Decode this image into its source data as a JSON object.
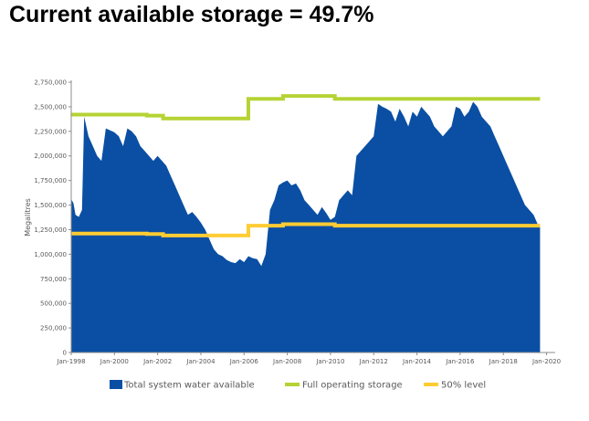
{
  "headline": "Current available storage = 49.7%",
  "chart_data": {
    "type": "area",
    "title": "",
    "xlabel": "",
    "ylabel": "Megalitres",
    "xlim": [
      1998.0,
      2020.4
    ],
    "ylim": [
      0,
      2750000
    ],
    "y_ticks": [
      0,
      250000,
      500000,
      750000,
      1000000,
      1250000,
      1500000,
      1750000,
      2000000,
      2250000,
      2500000,
      2750000
    ],
    "y_tick_labels": [
      "0",
      "250,000",
      "500,000",
      "750,000",
      "1,000,000",
      "1,250,000",
      "1,500,000",
      "1,750,000",
      "2,000,000",
      "2,250,000",
      "2,500,000",
      "2,750,000"
    ],
    "x_ticks": [
      1998,
      2000,
      2002,
      2004,
      2006,
      2008,
      2010,
      2012,
      2014,
      2016,
      2018,
      2020
    ],
    "x_tick_labels": [
      "Jan-1998",
      "Jan-2000",
      "Jan-2002",
      "Jan-2004",
      "Jan-2006",
      "Jan-2008",
      "Jan-2010",
      "Jan-2012",
      "Jan-2014",
      "Jan-2016",
      "Jan-2018",
      "Jan-2020"
    ],
    "grid": false,
    "legend_position": "bottom",
    "series": [
      {
        "name": "Total system water available",
        "kind": "area",
        "color": "#0a4fa3",
        "x": [
          1998.0,
          1998.1,
          1998.2,
          1998.35,
          1998.5,
          1998.6,
          1998.8,
          1999.0,
          1999.2,
          1999.4,
          1999.6,
          1999.8,
          2000.0,
          2000.2,
          2000.4,
          2000.6,
          2000.8,
          2001.0,
          2001.2,
          2001.4,
          2001.6,
          2001.8,
          2002.0,
          2002.2,
          2002.4,
          2002.6,
          2002.8,
          2003.0,
          2003.2,
          2003.4,
          2003.6,
          2003.8,
          2004.0,
          2004.2,
          2004.4,
          2004.6,
          2004.8,
          2005.0,
          2005.2,
          2005.4,
          2005.6,
          2005.8,
          2006.0,
          2006.2,
          2006.4,
          2006.6,
          2006.8,
          2007.0,
          2007.2,
          2007.4,
          2007.6,
          2007.8,
          2008.0,
          2008.2,
          2008.4,
          2008.6,
          2008.8,
          2009.0,
          2009.2,
          2009.4,
          2009.6,
          2009.8,
          2010.0,
          2010.2,
          2010.4,
          2010.6,
          2010.8,
          2011.0,
          2011.2,
          2011.4,
          2011.6,
          2011.8,
          2012.0,
          2012.2,
          2012.4,
          2012.6,
          2012.8,
          2013.0,
          2013.2,
          2013.4,
          2013.6,
          2013.8,
          2014.0,
          2014.2,
          2014.4,
          2014.6,
          2014.8,
          2015.0,
          2015.2,
          2015.4,
          2015.6,
          2015.8,
          2016.0,
          2016.2,
          2016.4,
          2016.6,
          2016.8,
          2017.0,
          2017.2,
          2017.4,
          2017.6,
          2017.8,
          2018.0,
          2018.2,
          2018.4,
          2018.6,
          2018.8,
          2019.0,
          2019.2,
          2019.4,
          2019.6,
          2019.7
        ],
        "y": [
          1560000,
          1520000,
          1400000,
          1380000,
          1450000,
          2400000,
          2200000,
          2100000,
          2000000,
          1950000,
          2280000,
          2260000,
          2240000,
          2200000,
          2100000,
          2280000,
          2250000,
          2200000,
          2100000,
          2050000,
          2000000,
          1950000,
          2000000,
          1950000,
          1900000,
          1800000,
          1700000,
          1600000,
          1500000,
          1400000,
          1430000,
          1380000,
          1320000,
          1250000,
          1150000,
          1050000,
          1000000,
          980000,
          940000,
          920000,
          910000,
          950000,
          920000,
          980000,
          960000,
          950000,
          880000,
          1000000,
          1450000,
          1550000,
          1700000,
          1730000,
          1750000,
          1700000,
          1720000,
          1650000,
          1550000,
          1500000,
          1450000,
          1400000,
          1480000,
          1420000,
          1350000,
          1380000,
          1550000,
          1600000,
          1650000,
          1600000,
          2000000,
          2050000,
          2100000,
          2150000,
          2200000,
          2530000,
          2500000,
          2480000,
          2450000,
          2350000,
          2480000,
          2400000,
          2300000,
          2450000,
          2400000,
          2500000,
          2450000,
          2400000,
          2300000,
          2250000,
          2200000,
          2250000,
          2300000,
          2500000,
          2480000,
          2400000,
          2450000,
          2550000,
          2500000,
          2400000,
          2350000,
          2300000,
          2200000,
          2100000,
          2000000,
          1900000,
          1800000,
          1700000,
          1600000,
          1500000,
          1450000,
          1400000,
          1300000,
          1280000
        ]
      },
      {
        "name": "Full operating storage",
        "kind": "step",
        "color": "#b5d334",
        "x": [
          1998.0,
          2001.5,
          2002.25,
          2006.2,
          2007.8,
          2010.2,
          2019.7
        ],
        "y": [
          2420000,
          2410000,
          2380000,
          2580000,
          2610000,
          2580000,
          2580000
        ]
      },
      {
        "name": "50% level",
        "kind": "step",
        "color": "#ffcc33",
        "x": [
          1998.0,
          2001.5,
          2002.25,
          2006.2,
          2007.8,
          2010.2,
          2019.7
        ],
        "y": [
          1210000,
          1205000,
          1190000,
          1290000,
          1305000,
          1290000,
          1290000
        ]
      }
    ]
  }
}
